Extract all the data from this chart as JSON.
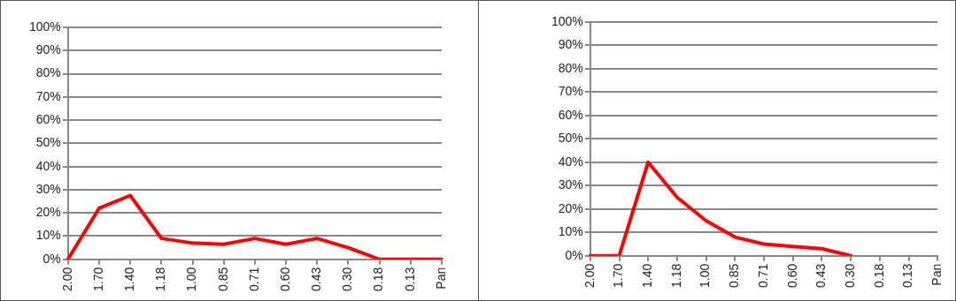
{
  "chart_data": [
    {
      "type": "line",
      "categories": [
        "2.00",
        "1.70",
        "1.40",
        "1.18",
        "1.00",
        "0.85",
        "0.71",
        "0.60",
        "0.43",
        "0.30",
        "0.18",
        "0.13",
        "Pan"
      ],
      "series": [
        {
          "color": "#ff0000",
          "values": [
            0,
            22,
            27.5,
            9,
            7,
            6.5,
            9,
            6.5,
            9,
            5,
            0,
            0,
            0
          ]
        }
      ],
      "ylim": [
        0,
        100
      ],
      "yticks": [
        {
          "value": 0,
          "label": "0%"
        },
        {
          "value": 10,
          "label": "10%"
        },
        {
          "value": 20,
          "label": "20%"
        },
        {
          "value": 30,
          "label": "30%"
        },
        {
          "value": 40,
          "label": "40%"
        },
        {
          "value": 50,
          "label": "50%"
        },
        {
          "value": 60,
          "label": "60%"
        },
        {
          "value": 70,
          "label": "70%"
        },
        {
          "value": 80,
          "label": "80%"
        },
        {
          "value": 90,
          "label": "90%"
        },
        {
          "value": 100,
          "label": "100%"
        }
      ],
      "grid": "y",
      "legend": false,
      "marker": "none",
      "line_style": "solid"
    },
    {
      "type": "line",
      "categories": [
        "2.00",
        "1.70",
        "1.40",
        "1.18",
        "1.00",
        "0.85",
        "0.71",
        "0.60",
        "0.43",
        "0.30",
        "0.18",
        "0.13",
        "Pan"
      ],
      "series": [
        {
          "color": "#ff0000",
          "values": [
            0,
            0,
            40,
            25,
            15,
            8,
            5,
            4,
            3,
            0,
            null,
            null,
            null
          ]
        }
      ],
      "ylim": [
        0,
        100
      ],
      "yticks": [
        {
          "value": 0,
          "label": "0%"
        },
        {
          "value": 10,
          "label": "10%"
        },
        {
          "value": 20,
          "label": "20%"
        },
        {
          "value": 30,
          "label": "30%"
        },
        {
          "value": 40,
          "label": "40%"
        },
        {
          "value": 50,
          "label": "50%"
        },
        {
          "value": 60,
          "label": "60%"
        },
        {
          "value": 70,
          "label": "70%"
        },
        {
          "value": 80,
          "label": "80%"
        },
        {
          "value": 90,
          "label": "90%"
        },
        {
          "value": 100,
          "label": "100%"
        }
      ],
      "grid": "y",
      "legend": false,
      "marker": "none",
      "line_style": "solid"
    }
  ]
}
